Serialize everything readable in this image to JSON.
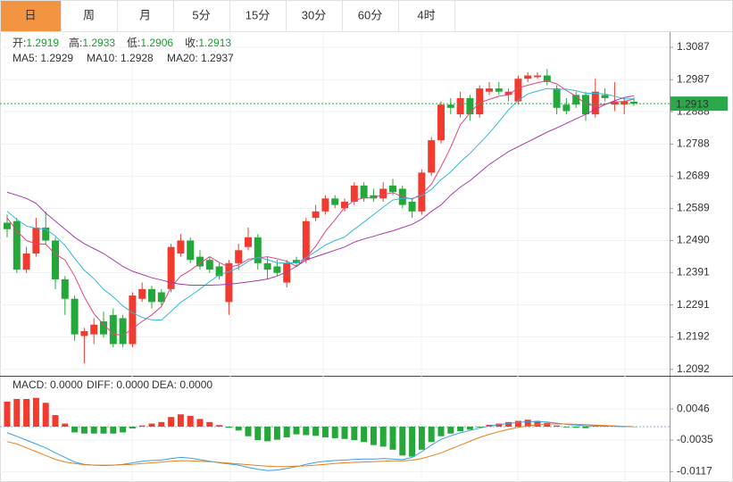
{
  "tabs": [
    "日",
    "周",
    "月",
    "5分",
    "15分",
    "30分",
    "60分",
    "4时"
  ],
  "active_tab": 0,
  "chart_data": [
    {
      "type": "candlestick",
      "grid": true,
      "up_color": "#f23a2f",
      "down_color": "#25a83a",
      "info": [
        "开:1.2919",
        "高:1.2933",
        "低:1.2906",
        "收:1.2913"
      ],
      "info_color": "#1d9b33",
      "ylim": [
        1.3134,
        1.2072
      ],
      "yticks": [
        1.3087,
        1.2987,
        1.2888,
        1.2788,
        1.2689,
        1.2589,
        {
          "value": 1.249,
          "label": "1.2490"
        },
        1.2391,
        1.2291,
        1.2192,
        1.2092
      ],
      "last_price": {
        "value": 1.2913,
        "label": "1.2913"
      },
      "last_price_color": "#2aa84a",
      "open": [
        1.2545,
        1.255,
        1.24,
        1.245,
        1.253,
        1.249,
        1.237,
        1.231,
        1.2195,
        1.22,
        1.224,
        1.226,
        1.225,
        1.217,
        1.231,
        1.234,
        1.233,
        1.234,
        1.245,
        1.249,
        1.244,
        1.243,
        1.241,
        1.23,
        1.242,
        1.247,
        1.25,
        1.242,
        1.241,
        1.236,
        1.243,
        1.243,
        1.256,
        1.258,
        1.262,
        1.259,
        1.261,
        1.266,
        1.263,
        1.262,
        1.266,
        1.265,
        1.261,
        1.258,
        1.27,
        1.28,
        1.291,
        1.288,
        1.293,
        1.288,
        1.295,
        1.296,
        1.294,
        1.292,
        1.299,
        1.2995,
        1.3,
        1.296,
        1.291,
        1.294,
        1.294,
        1.288,
        1.294,
        1.291,
        1.291,
        1.2919
      ],
      "high": [
        1.257,
        1.256,
        1.247,
        1.256,
        1.258,
        1.25,
        1.238,
        1.232,
        1.222,
        1.225,
        1.227,
        1.228,
        1.226,
        1.233,
        1.236,
        1.235,
        1.234,
        1.248,
        1.251,
        1.25,
        1.246,
        1.244,
        1.242,
        1.243,
        1.248,
        1.253,
        1.251,
        1.244,
        1.243,
        1.243,
        1.244,
        1.256,
        1.26,
        1.263,
        1.263,
        1.262,
        1.267,
        1.267,
        1.265,
        1.267,
        1.268,
        1.266,
        1.262,
        1.271,
        1.281,
        1.292,
        1.293,
        1.295,
        1.294,
        1.297,
        1.298,
        1.298,
        1.296,
        1.3,
        1.301,
        1.301,
        1.302,
        1.297,
        1.293,
        1.295,
        1.295,
        1.299,
        1.296,
        1.298,
        1.293,
        1.2933
      ],
      "low": [
        1.25,
        1.239,
        1.239,
        1.244,
        1.248,
        1.234,
        1.226,
        1.218,
        1.211,
        1.217,
        1.219,
        1.216,
        1.216,
        1.216,
        1.23,
        1.228,
        1.229,
        1.233,
        1.244,
        1.242,
        1.24,
        1.239,
        1.237,
        1.226,
        1.24,
        1.246,
        1.24,
        1.237,
        1.238,
        1.2345,
        1.241,
        1.242,
        1.255,
        1.257,
        1.259,
        1.258,
        1.26,
        1.261,
        1.261,
        1.261,
        1.263,
        1.259,
        1.256,
        1.257,
        1.269,
        1.279,
        1.288,
        1.287,
        1.286,
        1.287,
        1.294,
        1.294,
        1.292,
        1.291,
        1.298,
        1.299,
        1.297,
        1.288,
        1.288,
        1.29,
        1.286,
        1.287,
        1.292,
        1.289,
        1.288,
        1.2906
      ],
      "close": [
        1.2525,
        1.24,
        1.245,
        1.253,
        1.249,
        1.237,
        1.231,
        1.22,
        1.221,
        1.223,
        1.22,
        1.217,
        1.217,
        1.232,
        1.234,
        1.23,
        1.23,
        1.247,
        1.249,
        1.243,
        1.241,
        1.24,
        1.238,
        1.242,
        1.246,
        1.25,
        1.242,
        1.24,
        1.239,
        1.242,
        1.242,
        1.255,
        1.258,
        1.262,
        1.26,
        1.261,
        1.266,
        1.262,
        1.262,
        1.265,
        1.264,
        1.26,
        1.258,
        1.27,
        1.28,
        1.291,
        1.29,
        1.293,
        1.288,
        1.296,
        1.296,
        1.295,
        1.295,
        1.299,
        1.3,
        1.3,
        1.298,
        1.29,
        1.289,
        1.291,
        1.288,
        1.295,
        1.293,
        1.292,
        1.292,
        1.2913
      ],
      "series": [
        {
          "name": "MA5: 1.2929",
          "color": "#e0457f",
          "values": [
            1.256,
            1.252,
            1.249,
            1.248,
            1.2479,
            1.2448,
            1.243,
            1.238,
            1.2316,
            1.2264,
            1.223,
            1.2202,
            1.2196,
            1.2218,
            1.224,
            1.226,
            1.2286,
            1.2346,
            1.238,
            1.2398,
            1.242,
            1.244,
            1.2422,
            1.2408,
            1.2414,
            1.2432,
            1.2436,
            1.244,
            1.2434,
            1.2426,
            1.241,
            1.2436,
            1.2472,
            1.2518,
            1.2554,
            1.2592,
            1.2614,
            1.2622,
            1.2622,
            1.2632,
            1.2638,
            1.2626,
            1.2618,
            1.2634,
            1.2664,
            1.2718,
            1.2778,
            1.2848,
            1.2884,
            1.2916,
            1.2926,
            1.2936,
            1.294,
            1.2962,
            1.297,
            1.2978,
            1.2984,
            1.2974,
            1.2954,
            1.2936,
            1.2912,
            1.2906,
            1.2912,
            1.2918,
            1.292,
            1.2927
          ]
        },
        {
          "name": "MA10: 1.2928",
          "color": "#35b8d6",
          "values": [
            1.258,
            1.2555,
            1.2535,
            1.2528,
            1.2525,
            1.2504,
            1.2475,
            1.2435,
            1.2398,
            1.2372,
            1.2339,
            1.2316,
            1.2288,
            1.2267,
            1.2252,
            1.2245,
            1.2244,
            1.2271,
            1.2299,
            1.2319,
            1.234,
            1.2363,
            1.2384,
            1.2394,
            1.2406,
            1.2426,
            1.2438,
            1.2431,
            1.2421,
            1.242,
            1.2421,
            1.2436,
            1.2456,
            1.2476,
            1.249,
            1.2501,
            1.2525,
            1.2547,
            1.257,
            1.2593,
            1.2615,
            1.262,
            1.262,
            1.2628,
            1.2648,
            1.2678,
            1.2702,
            1.2733,
            1.2759,
            1.279,
            1.2822,
            1.2857,
            1.2894,
            1.2923,
            1.2943,
            1.2952,
            1.296,
            1.2957,
            1.2958,
            1.2953,
            1.2945,
            1.2945,
            1.2943,
            1.2936,
            1.2928,
            1.2928
          ]
        },
        {
          "name": "MA20: 1.2937",
          "color": "#a83aab",
          "values": [
            1.2639,
            1.263,
            1.262,
            1.2605,
            1.2575,
            1.255,
            1.2525,
            1.25,
            1.248,
            1.2465,
            1.245,
            1.243,
            1.241,
            1.2395,
            1.2385,
            1.2375,
            1.2368,
            1.236,
            1.2355,
            1.2352,
            1.2352,
            1.2352,
            1.2353,
            1.2355,
            1.2358,
            1.2362,
            1.2366,
            1.2371,
            1.238,
            1.2393,
            1.241,
            1.243,
            1.244,
            1.245,
            1.246,
            1.247,
            1.2485,
            1.2495,
            1.2503,
            1.2512,
            1.252,
            1.253,
            1.254,
            1.2556,
            1.258,
            1.26,
            1.263,
            1.2655,
            1.2675,
            1.27,
            1.2725,
            1.2745,
            1.2765,
            1.278,
            1.2795,
            1.281,
            1.2825,
            1.2838,
            1.2852,
            1.2866,
            1.288,
            1.2895,
            1.291,
            1.2922,
            1.2932,
            1.2937
          ]
        }
      ]
    },
    {
      "type": "macd",
      "up_color": "#f23a2f",
      "down_color": "#25a83a",
      "ylim": [
        0.013,
        -0.0144
      ],
      "yticks": [
        0.0046,
        -0.0035,
        -0.0117
      ],
      "series": [
        {
          "name": "MACD: 0.0000",
          "kind": "histogram",
          "color": "#e4393c",
          "values": [
            0.0065,
            0.0072,
            0.0072,
            0.0075,
            0.0062,
            0.003,
            0.0008,
            -0.0015,
            -0.0018,
            -0.0018,
            -0.0018,
            -0.0018,
            -0.0015,
            -0.0005,
            0.0003,
            0.0008,
            0.0012,
            0.0025,
            0.0032,
            0.0028,
            0.002,
            0.0012,
            0.0004,
            -0.0003,
            -0.001,
            -0.0025,
            -0.0035,
            -0.0038,
            -0.0034,
            -0.0028,
            -0.002,
            -0.0022,
            -0.0024,
            -0.0028,
            -0.003,
            -0.0032,
            -0.0035,
            -0.004,
            -0.0048,
            -0.0052,
            -0.006,
            -0.0075,
            -0.0078,
            -0.006,
            -0.004,
            -0.0025,
            -0.0018,
            -0.0012,
            -0.0008,
            -0.0002,
            0.0005,
            0.0008,
            0.0012,
            0.0015,
            0.0018,
            0.0015,
            0.001,
            0.0003,
            -0.0002,
            -0.0003,
            -0.0004,
            0.0002,
            0.0003,
            0.0001,
            0,
            -0.0001
          ]
        },
        {
          "name": "DIFF: 0.0000",
          "kind": "line",
          "color": "#3d9fe0",
          "values": [
            -0.0016,
            -0.0025,
            -0.0035,
            -0.0045,
            -0.0055,
            -0.0068,
            -0.008,
            -0.0092,
            -0.0098,
            -0.01,
            -0.0101,
            -0.01,
            -0.0098,
            -0.0094,
            -0.009,
            -0.0088,
            -0.0087,
            -0.0083,
            -0.008,
            -0.0082,
            -0.0086,
            -0.009,
            -0.0094,
            -0.0097,
            -0.01,
            -0.0106,
            -0.0111,
            -0.0114,
            -0.0113,
            -0.0109,
            -0.0104,
            -0.0098,
            -0.0093,
            -0.009,
            -0.0088,
            -0.0087,
            -0.0085,
            -0.0084,
            -0.0084,
            -0.0083,
            -0.0084,
            -0.0086,
            -0.008,
            -0.0065,
            -0.0048,
            -0.0033,
            -0.0024,
            -0.0016,
            -0.001,
            -0.0004,
            0.0002,
            0.0005,
            0.0008,
            0.0011,
            0.0013,
            0.0013,
            0.0012,
            0.0009,
            0.0006,
            0.0004,
            0.0002,
            0.0002,
            0.0002,
            0.0001,
            0,
            0
          ]
        },
        {
          "name": "DEA: 0.0000",
          "kind": "line",
          "color": "#e7801e",
          "values": [
            -0.0039,
            -0.0045,
            -0.0055,
            -0.0065,
            -0.0075,
            -0.0085,
            -0.0092,
            -0.0096,
            -0.0099,
            -0.01,
            -0.01,
            -0.01,
            -0.0099,
            -0.0098,
            -0.0096,
            -0.0094,
            -0.0092,
            -0.009,
            -0.0089,
            -0.0089,
            -0.009,
            -0.0091,
            -0.0093,
            -0.0095,
            -0.0097,
            -0.0099,
            -0.0101,
            -0.0103,
            -0.0104,
            -0.0104,
            -0.0103,
            -0.0102,
            -0.01,
            -0.0098,
            -0.0096,
            -0.0094,
            -0.0093,
            -0.0092,
            -0.0091,
            -0.009,
            -0.0089,
            -0.0089,
            -0.0087,
            -0.0083,
            -0.0076,
            -0.0068,
            -0.0058,
            -0.0048,
            -0.0038,
            -0.0028,
            -0.002,
            -0.0013,
            -0.0007,
            -0.0002,
            0.0002,
            0.0005,
            0.0007,
            0.0007,
            0.0007,
            0.0006,
            0.0005,
            0.0004,
            0.0003,
            0.0002,
            0.0001,
            0
          ]
        }
      ]
    }
  ]
}
